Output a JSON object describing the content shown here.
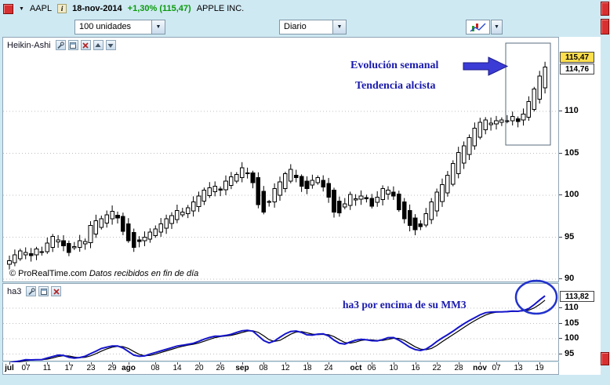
{
  "icons": {
    "header_caret": "▼",
    "dropdown_arrow": "▼",
    "info": "i"
  },
  "colors": {
    "background": "#cfe9f3",
    "panel_bg": "#ffffff",
    "accent_red": "#d83030",
    "change_green": "#0a9a0a",
    "annotation_blue": "#1a1aae",
    "tag_yellow": "#ffdf4d",
    "candle_up": "#ffffff",
    "candle_down": "#000000",
    "ha3_line": "#1414cc",
    "mm3_line": "#000000"
  },
  "header": {
    "symbol": "AAPL",
    "date": "18-nov-2014",
    "change": "+1,30% (115,47)",
    "company": "APPLE INC."
  },
  "toolbar": {
    "units": "100 unidades",
    "period": "Diario"
  },
  "main_panel": {
    "label": "Heikin-Ashi",
    "annotations": {
      "line1": "Evolución semanal",
      "line2": "Tendencia alcista"
    },
    "price_tags": {
      "current": "115,47",
      "secondary": "114,76"
    },
    "y_ticks": [
      110,
      105,
      100,
      95,
      90
    ],
    "footer_copyright": "© ProRealTime.com",
    "footer_notice": "Datos recibidos en fin de día"
  },
  "lower_panel": {
    "label": "ha3",
    "annotation": "ha3 por encima de su MM3",
    "price_tag": "113,82",
    "y_ticks": [
      110,
      105,
      100,
      95
    ]
  },
  "chart_data": {
    "type": "candlestick",
    "style": "heikin-ashi",
    "symbol": "AAPL",
    "timeframe": "Diario",
    "ylim_main": [
      89.5,
      118.8
    ],
    "ylim_lower": [
      92.5,
      118
    ],
    "closes": [
      92.2,
      92.9,
      93.4,
      93.2,
      92.8,
      93.6,
      93.3,
      94.3,
      95.1,
      94.7,
      94.0,
      93.2,
      93.9,
      94.6,
      94.5,
      96.4,
      97.0,
      97.2,
      97.7,
      98.1,
      97.3,
      95.7,
      94.6,
      93.8,
      94.5,
      95.0,
      95.6,
      96.0,
      96.6,
      97.2,
      97.6,
      98.2,
      98.0,
      98.5,
      99.2,
      99.9,
      100.6,
      100.9,
      101.1,
      100.6,
      101.7,
      102.2,
      102.5,
      103.3,
      102.7,
      101.5,
      98.9,
      98.0,
      99.2,
      100.8,
      101.6,
      102.6,
      103.1,
      102.1,
      101.1,
      100.8,
      101.8,
      102.1,
      101.0,
      99.8,
      98.0,
      97.9,
      99.0,
      100.1,
      99.6,
      99.9,
      99.6,
      98.7,
      99.8,
      100.8,
      100.6,
      99.9,
      98.3,
      97.2,
      96.4,
      95.9,
      96.3,
      97.8,
      99.2,
      100.4,
      101.3,
      102.4,
      103.8,
      105.1,
      105.9,
      106.9,
      108.0,
      108.7,
      109.0,
      108.6,
      108.9,
      109.0,
      108.9,
      109.4,
      108.8,
      109.7,
      111.2,
      112.7,
      114.2,
      115.3
    ],
    "x_ticks": [
      {
        "label": "jul",
        "idx": 0,
        "month": true
      },
      {
        "label": "07",
        "idx": 3
      },
      {
        "label": "11",
        "idx": 7
      },
      {
        "label": "17",
        "idx": 11
      },
      {
        "label": "23",
        "idx": 15
      },
      {
        "label": "29",
        "idx": 19
      },
      {
        "label": "ago",
        "idx": 22,
        "month": true
      },
      {
        "label": "08",
        "idx": 27
      },
      {
        "label": "14",
        "idx": 31
      },
      {
        "label": "20",
        "idx": 35
      },
      {
        "label": "26",
        "idx": 39
      },
      {
        "label": "sep",
        "idx": 43,
        "month": true
      },
      {
        "label": "08",
        "idx": 47
      },
      {
        "label": "12",
        "idx": 51
      },
      {
        "label": "18",
        "idx": 55
      },
      {
        "label": "24",
        "idx": 59
      },
      {
        "label": "oct",
        "idx": 64,
        "month": true
      },
      {
        "label": "06",
        "idx": 67
      },
      {
        "label": "10",
        "idx": 71
      },
      {
        "label": "16",
        "idx": 75
      },
      {
        "label": "22",
        "idx": 79
      },
      {
        "label": "28",
        "idx": 83
      },
      {
        "label": "nov",
        "idx": 87,
        "month": true
      },
      {
        "label": "07",
        "idx": 90
      },
      {
        "label": "13",
        "idx": 94
      },
      {
        "label": "19",
        "idx": 98
      }
    ],
    "lower_indicator": {
      "name": "ha3",
      "series": [
        {
          "name": "ha3",
          "derivation": "SMA3 of closes",
          "color": "#1414cc"
        },
        {
          "name": "MM3",
          "derivation": "SMA3 of ha3",
          "color": "#000000"
        }
      ]
    }
  }
}
